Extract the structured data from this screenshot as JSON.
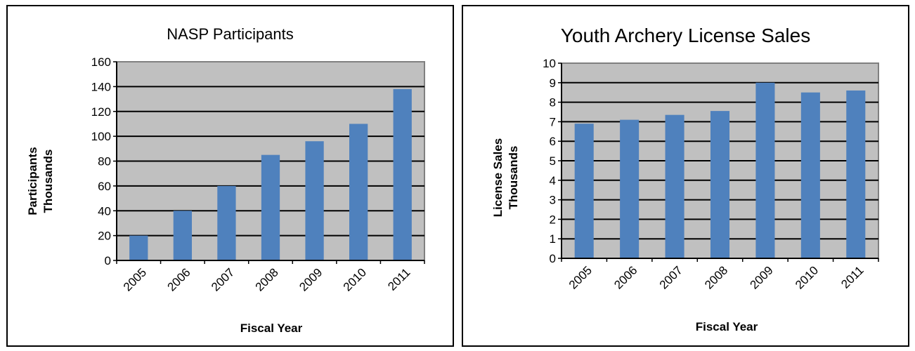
{
  "charts": [
    {
      "id": "left",
      "type": "bar",
      "title": "NASP Participants",
      "xlabel": "Fiscal Year",
      "ylabel_line1": "Participants",
      "ylabel_line2": "Thousands",
      "categories": [
        "2005",
        "2006",
        "2007",
        "2008",
        "2009",
        "2010",
        "2011"
      ],
      "values": [
        20,
        40,
        60,
        85,
        96,
        110,
        138
      ],
      "ylim": [
        0,
        160
      ],
      "yticks": [
        0,
        20,
        40,
        60,
        80,
        100,
        120,
        140,
        160
      ],
      "bar_color": "#4f81bd",
      "plot_bg": "#c0c0c0",
      "grid": true
    },
    {
      "id": "right",
      "type": "bar",
      "title": "Youth Archery License Sales",
      "xlabel": "Fiscal Year",
      "ylabel_line1": "License Sales",
      "ylabel_line2": "Thousands",
      "categories": [
        "2005",
        "2006",
        "2007",
        "2008",
        "2009",
        "2010",
        "2011"
      ],
      "values": [
        6.9,
        7.1,
        7.35,
        7.55,
        9.0,
        8.5,
        8.6
      ],
      "ylim": [
        0,
        10
      ],
      "yticks": [
        0,
        1,
        2,
        3,
        4,
        5,
        6,
        7,
        8,
        9,
        10
      ],
      "bar_color": "#4f81bd",
      "plot_bg": "#c0c0c0",
      "grid": true
    }
  ],
  "chart_data": [
    {
      "type": "bar",
      "title": "NASP Participants",
      "xlabel": "Fiscal Year",
      "ylabel": "Participants Thousands",
      "categories": [
        "2005",
        "2006",
        "2007",
        "2008",
        "2009",
        "2010",
        "2011"
      ],
      "values": [
        20,
        40,
        60,
        85,
        96,
        110,
        138
      ],
      "ylim": [
        0,
        160
      ],
      "grid": true
    },
    {
      "type": "bar",
      "title": "Youth Archery License Sales",
      "xlabel": "Fiscal Year",
      "ylabel": "License Sales Thousands",
      "categories": [
        "2005",
        "2006",
        "2007",
        "2008",
        "2009",
        "2010",
        "2011"
      ],
      "values": [
        6.9,
        7.1,
        7.35,
        7.55,
        9.0,
        8.5,
        8.6
      ],
      "ylim": [
        0,
        10
      ],
      "grid": true
    }
  ]
}
